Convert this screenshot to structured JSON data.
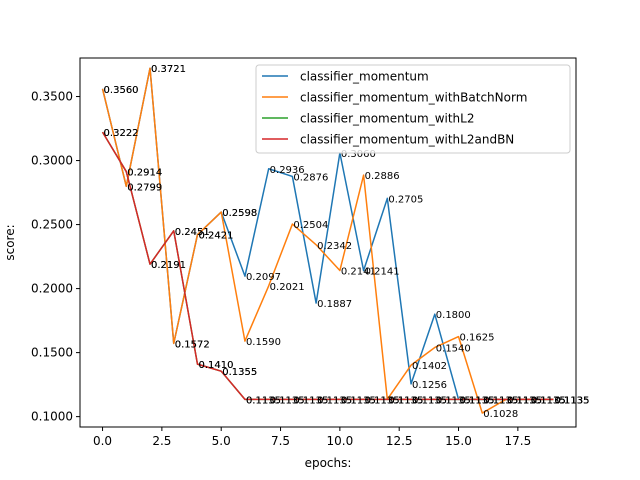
{
  "chart_data": {
    "type": "line",
    "title": "",
    "xlabel": "epochs:",
    "ylabel": "score:",
    "xlim": [
      -0.95,
      19.95
    ],
    "ylim": [
      0.0919,
      0.3801
    ],
    "xticks": [
      0.0,
      2.5,
      5.0,
      7.5,
      10.0,
      12.5,
      15.0,
      17.5
    ],
    "xtick_labels": [
      "0.0",
      "2.5",
      "5.0",
      "7.5",
      "10.0",
      "12.5",
      "15.0",
      "17.5"
    ],
    "yticks": [
      0.1,
      0.15,
      0.2,
      0.25,
      0.3,
      0.35
    ],
    "ytick_labels": [
      "0.1000",
      "0.1500",
      "0.2000",
      "0.2500",
      "0.3000",
      "0.3500"
    ],
    "grid": false,
    "legend_position": "top-right",
    "x": [
      0,
      1,
      2,
      3,
      4,
      5,
      6,
      7,
      8,
      9,
      10,
      11,
      12,
      13,
      14,
      15,
      16,
      17,
      18,
      19
    ],
    "series": [
      {
        "name": "classifier_momentum",
        "color": "#1f77b4",
        "values": [
          0.356,
          0.2799,
          0.3721,
          0.1572,
          0.2421,
          0.2598,
          0.2097,
          0.2936,
          0.2876,
          0.1887,
          0.306,
          0.2141,
          0.2705,
          0.1256,
          0.18,
          0.1135,
          0.1135,
          0.1135,
          0.1135,
          0.1135
        ],
        "labels": [
          "0.3560",
          "0.2799",
          "0.3721",
          "0.1572",
          "0.2421",
          "0.2598",
          "0.2097",
          "0.2936",
          "0.2876",
          "0.1887",
          "0.3060",
          "0.2141",
          "0.2705",
          "0.1256",
          "0.1800",
          "0.1135",
          "0.1135",
          "0.1135",
          "0.1135",
          "0.1135"
        ]
      },
      {
        "name": "classifier_momentum_withBatchNorm",
        "color": "#ff7f0e",
        "values": [
          0.356,
          0.2799,
          0.3721,
          0.1572,
          0.2421,
          0.2598,
          0.159,
          0.2021,
          0.2504,
          0.2342,
          0.2141,
          0.2886,
          0.1135,
          0.1402,
          0.154,
          0.1625,
          0.1028,
          0.1135,
          0.1135,
          0.1135
        ],
        "labels": [
          "0.3560",
          "0.2799",
          "0.3721",
          "0.1572",
          "0.2421",
          "0.2598",
          "0.1590",
          "0.2021",
          "0.2504",
          "0.2342",
          "0.2141",
          "0.2886",
          "0.1135",
          "0.1402",
          "0.1540",
          "0.1625",
          "0.1028",
          "0.1135",
          "0.1135",
          "0.1135"
        ]
      },
      {
        "name": "classifier_momentum_withL2",
        "color": "#2ca02c",
        "values": [
          0.3222,
          0.2914,
          0.2191,
          0.2451,
          0.141,
          0.1355,
          0.1135,
          0.1135,
          0.1135,
          0.1135,
          0.1135,
          0.1135,
          0.1135,
          0.1135,
          0.1135,
          0.1135,
          0.1135,
          0.1135,
          0.1135,
          0.1135
        ],
        "labels": [
          "0.3222",
          "0.2914",
          "0.2191",
          "0.2451",
          "0.1410",
          "0.1355",
          "0.1135",
          "0.1135",
          "0.1135",
          "0.1135",
          "0.1135",
          "0.1135",
          "0.1135",
          "0.1135",
          "0.1135",
          "0.1135",
          "0.1135",
          "0.1135",
          "0.1135",
          "0.1135"
        ]
      },
      {
        "name": "classifier_momentum_withL2andBN",
        "color": "#d62728",
        "values": [
          0.3222,
          0.2914,
          0.2191,
          0.2451,
          0.141,
          0.1355,
          0.1135,
          0.1135,
          0.1135,
          0.1135,
          0.1135,
          0.1135,
          0.1135,
          0.1135,
          0.1135,
          0.1135,
          0.1135,
          0.1135,
          0.1135,
          0.1135
        ],
        "labels": [
          "0.3222",
          "0.2914",
          "0.2191",
          "0.2451",
          "0.1410",
          "0.1355",
          "0.1135",
          "0.1135",
          "0.1135",
          "0.1135",
          "0.1135",
          "0.1135",
          "0.1135",
          "0.1135",
          "0.1135",
          "0.1135",
          "0.1135",
          "0.1135",
          "0.1135",
          "0.1135"
        ]
      }
    ]
  }
}
